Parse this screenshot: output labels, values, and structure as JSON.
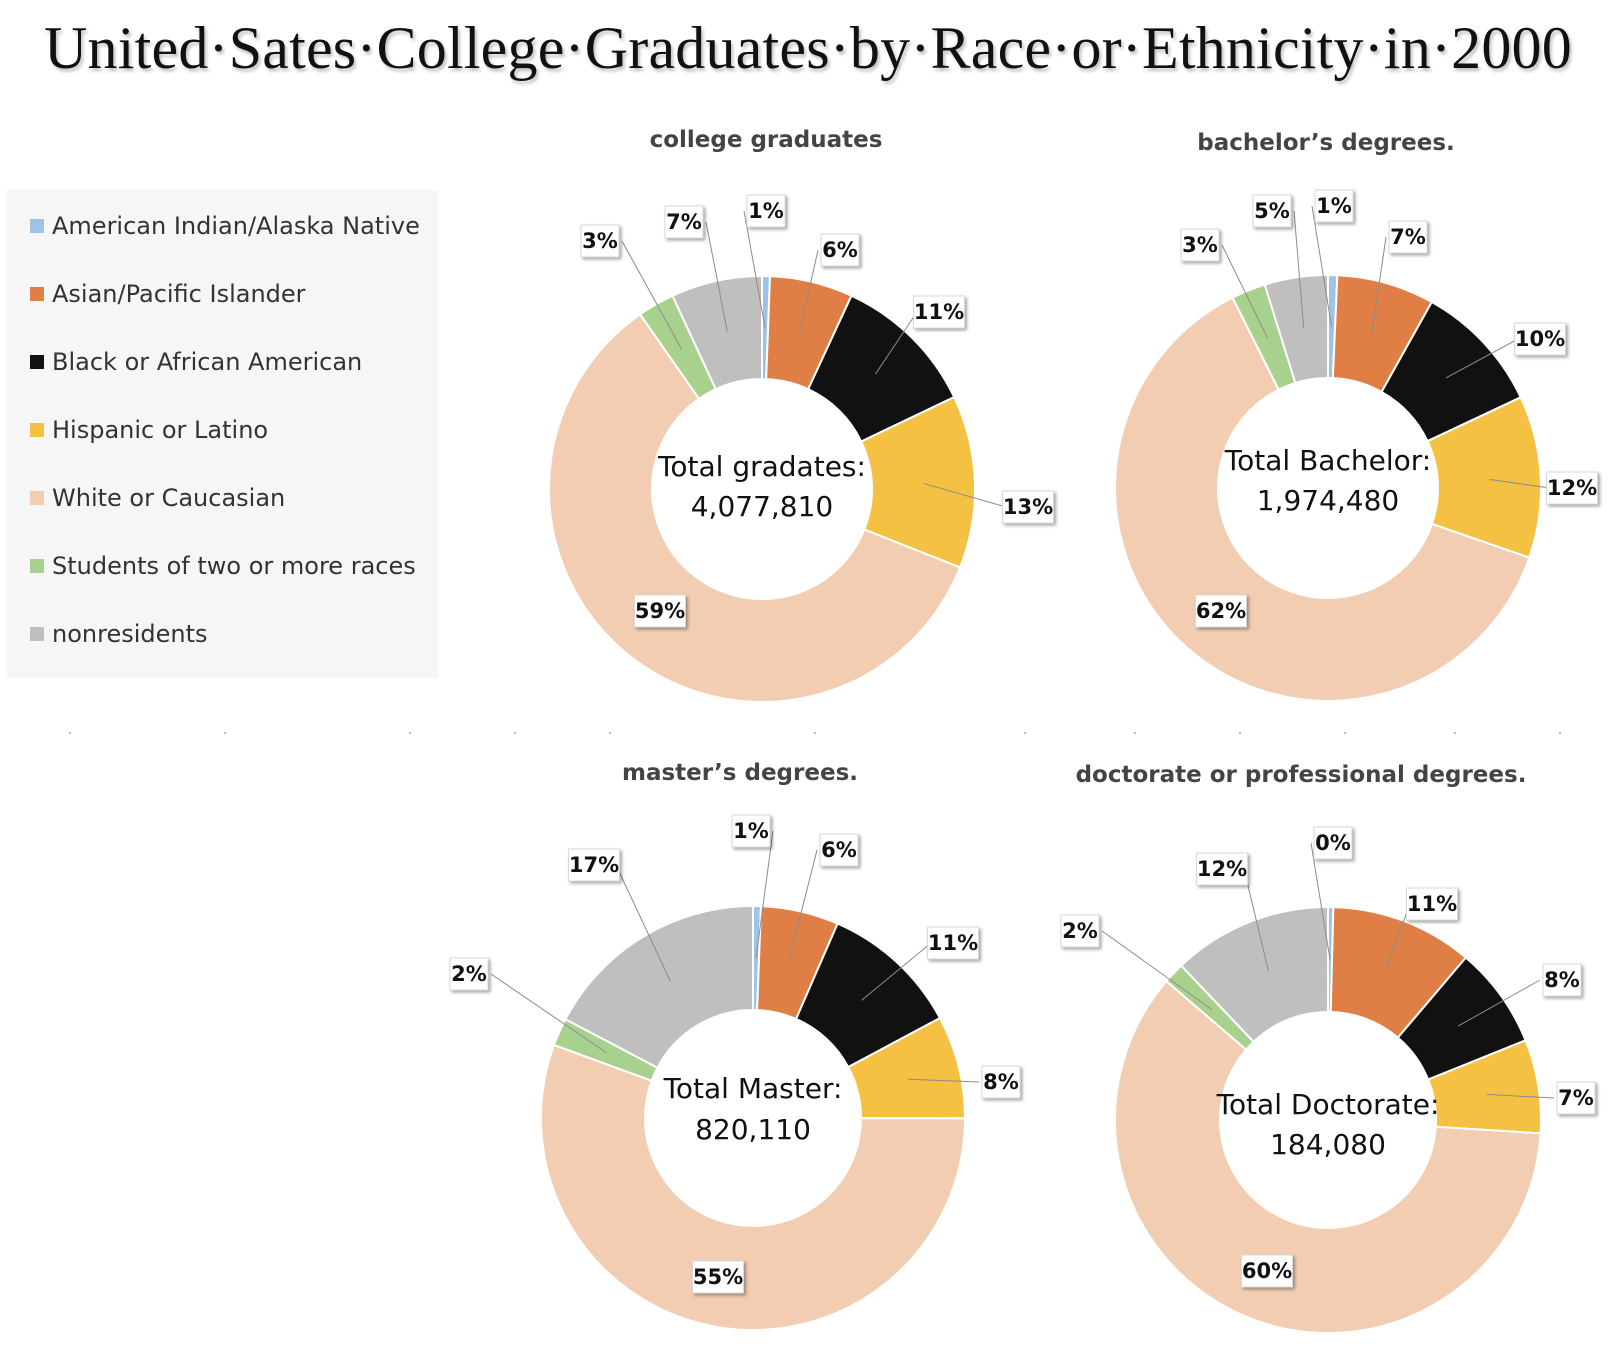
{
  "title": "United·Sates·College·Graduates·by·Race·or·Ethnicity·in·2000",
  "legend": [
    {
      "label": "American Indian/Alaska Native",
      "color": "#9dc3e6"
    },
    {
      "label": "Asian/Pacific Islander",
      "color": "#e07f45"
    },
    {
      "label": "Black or African American",
      "color": "#111111"
    },
    {
      "label": "Hispanic or Latino",
      "color": "#f4c143"
    },
    {
      "label": "White or Caucasian",
      "color": "#f2cdb1"
    },
    {
      "label": "Students of two or more races",
      "color": "#a9d18e"
    },
    {
      "label": "nonresidents",
      "color": "#bfbfbf"
    }
  ],
  "chart_data": [
    {
      "type": "pie",
      "title": "college graduates",
      "center_label": "Total gradates:",
      "center_value": "4,077,810",
      "categories": [
        "American Indian/Alaska Native",
        "Asian/Pacific Islander",
        "Black or African American",
        "Hispanic or Latino",
        "White or Caucasian",
        "Students of two or more races",
        "nonresidents"
      ],
      "values": [
        0.6,
        6.3,
        11.0,
        13.1,
        59.3,
        2.8,
        6.9
      ],
      "data_labels": [
        "1%",
        "6%",
        "11%",
        "13%",
        "59%",
        "3%",
        "7%"
      ]
    },
    {
      "type": "pie",
      "title": "bachelor’s degrees.",
      "center_label": "Total Bachelor:",
      "center_value": "1,974,480",
      "categories": [
        "American Indian/Alaska Native",
        "Asian/Pacific Islander",
        "Black or African American",
        "Hispanic or Latino",
        "White or Caucasian",
        "Students of two or more races",
        "nonresidents"
      ],
      "values": [
        0.7,
        7.4,
        9.9,
        12.3,
        62.3,
        2.6,
        4.8
      ],
      "data_labels": [
        "1%",
        "7%",
        "10%",
        "12%",
        "62%",
        "3%",
        "5%"
      ]
    },
    {
      "type": "pie",
      "title": "master’s degrees.",
      "center_label": "Total Master:",
      "center_value": "820,110",
      "categories": [
        "American Indian/Alaska Native",
        "Asian/Pacific Islander",
        "Black or African American",
        "Hispanic or Latino",
        "White or Caucasian",
        "Students of two or more races",
        "nonresidents"
      ],
      "values": [
        0.6,
        5.9,
        10.6,
        7.8,
        55.3,
        2.1,
        17.2
      ],
      "data_labels": [
        "1%",
        "6%",
        "11%",
        "8%",
        "55%",
        "2%",
        "17%"
      ]
    },
    {
      "type": "pie",
      "title": "doctorate or professional degrees.",
      "center_label": "Total Doctorate:",
      "center_value": "184,080",
      "categories": [
        "American Indian/Alaska Native",
        "Asian/Pacific Islander",
        "Black or African American",
        "Hispanic or Latino",
        "White or Caucasian",
        "Students of two or more races",
        "nonresidents"
      ],
      "values": [
        0.4,
        10.8,
        7.7,
        7.1,
        60.3,
        1.6,
        12.1
      ],
      "data_labels": [
        "0%",
        "11%",
        "8%",
        "7%",
        "60%",
        "2%",
        "12%"
      ]
    }
  ]
}
